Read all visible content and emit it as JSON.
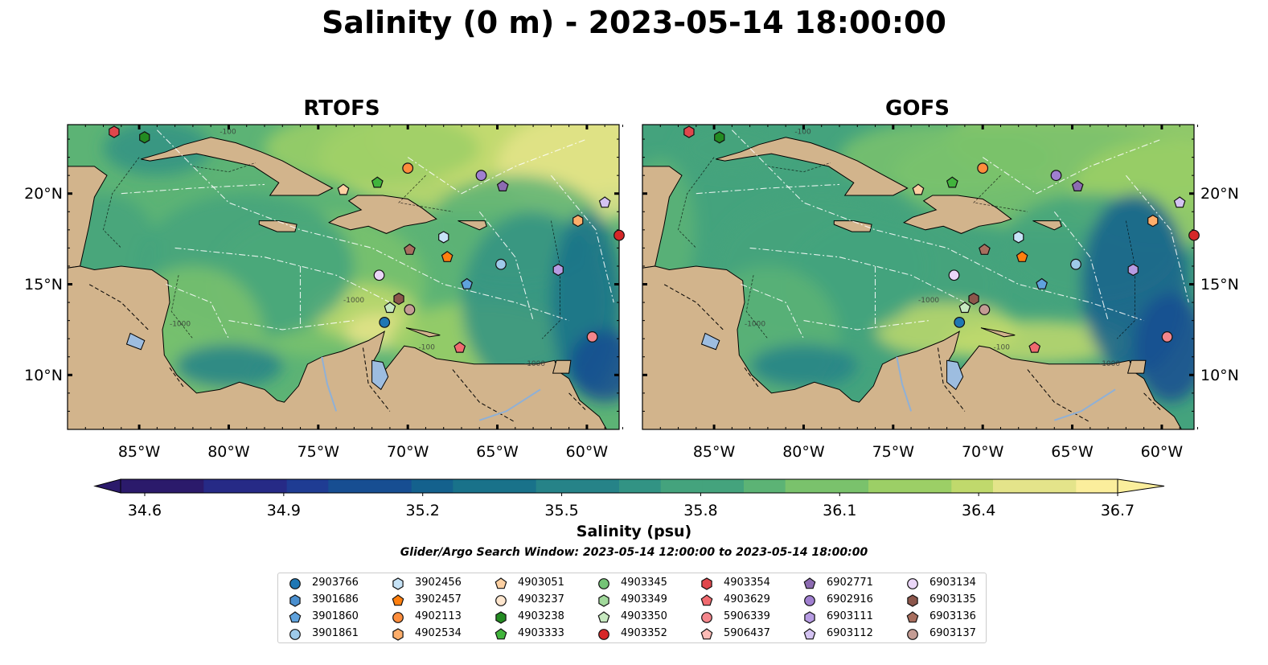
{
  "title": "Salinity (0 m) - 2023-05-14 18:00:00",
  "panels": [
    {
      "title": "RTOFS",
      "variant": "rtofs"
    },
    {
      "title": "GOFS",
      "variant": "gofs"
    }
  ],
  "map": {
    "lat_ticks": [
      "20°N",
      "15°N",
      "10°N"
    ],
    "lat_values": [
      20,
      15,
      10
    ],
    "lon_ticks": [
      "85°W",
      "80°W",
      "75°W",
      "70°W",
      "65°W",
      "60°W"
    ],
    "lon_values": [
      -85,
      -80,
      -75,
      -70,
      -65,
      -60
    ],
    "lon_range": [
      -89,
      -58.2
    ],
    "lat_range": [
      7,
      23.8
    ],
    "land_color": "#d2b48c",
    "lake_color": "#9dbde0",
    "bathymetry_labels": [
      "-100",
      "-1000",
      "-1000",
      "-100",
      "-1000"
    ]
  },
  "colorbar": {
    "label": "Salinity (psu)",
    "ticks": [
      "34.6",
      "34.9",
      "35.2",
      "35.5",
      "35.8",
      "36.1",
      "36.4",
      "36.7"
    ],
    "min": 34.6,
    "max": 36.7,
    "extend": "both",
    "colormap": [
      "#2b1a6b",
      "#262a86",
      "#1f3c93",
      "#174e92",
      "#14618d",
      "#19728a",
      "#268388",
      "#329384",
      "#44a37d",
      "#5cb375",
      "#7ac26c",
      "#9ccf66",
      "#c0d96c",
      "#e4e48a",
      "#fbee9c"
    ]
  },
  "search_window": "Glider/Argo Search Window: 2023-05-14 12:00:00 to 2023-05-14 18:00:00",
  "floats": [
    {
      "id": "2903766",
      "color": "#1f77b4",
      "marker": "circle",
      "lon": -71.3,
      "lat": 12.9
    },
    {
      "id": "3901686",
      "color": "#4a8fcf",
      "marker": "hexagon",
      "lon": null,
      "lat": null
    },
    {
      "id": "3901860",
      "color": "#5fa2dd",
      "marker": "pentagon",
      "lon": -66.7,
      "lat": 15.0
    },
    {
      "id": "3901861",
      "color": "#9ecae9",
      "marker": "circle",
      "lon": -64.8,
      "lat": 16.1
    },
    {
      "id": "3902456",
      "color": "#c6e3f7",
      "marker": "hexagon",
      "lon": -68.0,
      "lat": 17.6
    },
    {
      "id": "3902457",
      "color": "#ff7f0e",
      "marker": "pentagon",
      "lon": -67.8,
      "lat": 16.5
    },
    {
      "id": "4902113",
      "color": "#fd8d3c",
      "marker": "circle",
      "lon": -70.0,
      "lat": 21.4
    },
    {
      "id": "4902534",
      "color": "#fdae6b",
      "marker": "hexagon",
      "lon": -60.5,
      "lat": 18.5
    },
    {
      "id": "4903051",
      "color": "#fdd0a2",
      "marker": "pentagon",
      "lon": -73.6,
      "lat": 20.2
    },
    {
      "id": "4903237",
      "color": "#fee6ce",
      "marker": "circle",
      "lon": null,
      "lat": null
    },
    {
      "id": "4903238",
      "color": "#238b22",
      "marker": "hexagon",
      "lon": -84.7,
      "lat": 23.1
    },
    {
      "id": "4903333",
      "color": "#41b43c",
      "marker": "pentagon",
      "lon": -71.7,
      "lat": 20.6
    },
    {
      "id": "4903345",
      "color": "#74c476",
      "marker": "circle",
      "lon": null,
      "lat": null
    },
    {
      "id": "4903349",
      "color": "#a1d99b",
      "marker": "hexagon",
      "lon": null,
      "lat": null
    },
    {
      "id": "4903350",
      "color": "#c7e9c0",
      "marker": "pentagon",
      "lon": -71.0,
      "lat": 13.7
    },
    {
      "id": "4903352",
      "color": "#d62728",
      "marker": "circle",
      "lon": -58.2,
      "lat": 17.7
    },
    {
      "id": "4903354",
      "color": "#e0474c",
      "marker": "hexagon",
      "lon": -86.4,
      "lat": 23.4
    },
    {
      "id": "4903629",
      "color": "#f16a6f",
      "marker": "pentagon",
      "lon": -67.1,
      "lat": 11.5
    },
    {
      "id": "5906339",
      "color": "#f4868c",
      "marker": "circle",
      "lon": -59.7,
      "lat": 12.1
    },
    {
      "id": "5906437",
      "color": "#fcbbb6",
      "marker": "pentagon",
      "lon": null,
      "lat": null
    },
    {
      "id": "6902771",
      "color": "#8c6bb1",
      "marker": "pentagon",
      "lon": -64.7,
      "lat": 20.4
    },
    {
      "id": "6902916",
      "color": "#a07fd0",
      "marker": "circle",
      "lon": -65.9,
      "lat": 21.0
    },
    {
      "id": "6903111",
      "color": "#b79ce3",
      "marker": "hexagon",
      "lon": -61.6,
      "lat": 15.8
    },
    {
      "id": "6903112",
      "color": "#d4c3f2",
      "marker": "pentagon",
      "lon": -59.0,
      "lat": 19.5
    },
    {
      "id": "6903134",
      "color": "#ead6f7",
      "marker": "circle",
      "lon": -71.6,
      "lat": 15.5
    },
    {
      "id": "6903135",
      "color": "#8c564b",
      "marker": "hexagon",
      "lon": -70.5,
      "lat": 14.2
    },
    {
      "id": "6903136",
      "color": "#a86e5e",
      "marker": "pentagon",
      "lon": -69.9,
      "lat": 16.9
    },
    {
      "id": "6903137",
      "color": "#c49c94",
      "marker": "circle",
      "lon": -69.9,
      "lat": 13.6
    }
  ]
}
